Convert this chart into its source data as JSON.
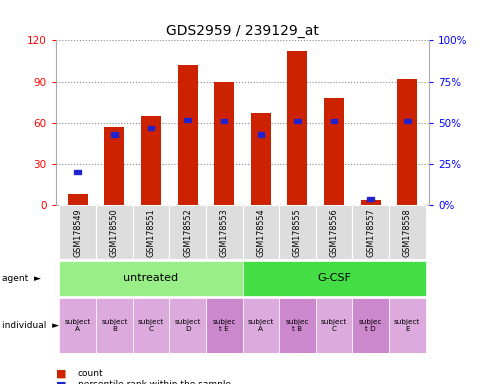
{
  "title": "GDS2959 / 239129_at",
  "samples": [
    "GSM178549",
    "GSM178550",
    "GSM178551",
    "GSM178552",
    "GSM178553",
    "GSM178554",
    "GSM178555",
    "GSM178556",
    "GSM178557",
    "GSM178558"
  ],
  "counts": [
    8,
    57,
    65,
    102,
    90,
    67,
    112,
    78,
    4,
    92
  ],
  "percentiles": [
    20,
    43,
    47,
    52,
    51,
    43,
    51,
    51,
    4,
    51
  ],
  "ylim_left": [
    0,
    120
  ],
  "yticks_left": [
    0,
    30,
    60,
    90,
    120
  ],
  "ytick_labels_left": [
    "0",
    "30",
    "60",
    "90",
    "120"
  ],
  "yticks_right_pct": [
    0,
    25,
    50,
    75,
    100
  ],
  "ytick_labels_right": [
    "0%",
    "25%",
    "50%",
    "75%",
    "100%"
  ],
  "bar_color": "#cc2200",
  "percentile_color": "#2222cc",
  "groups": [
    {
      "label": "untreated",
      "start": 0,
      "end": 5,
      "color": "#99ee88"
    },
    {
      "label": "G-CSF",
      "start": 5,
      "end": 10,
      "color": "#44dd44"
    }
  ],
  "individuals": [
    "subject\nA",
    "subject\nB",
    "subject\nC",
    "subject\nD",
    "subjec\nt E",
    "subject\nA",
    "subjec\nt B",
    "subject\nC",
    "subjec\nt D",
    "subject\nE"
  ],
  "indiv_colors": [
    "#ddaadd",
    "#ddaadd",
    "#ddaadd",
    "#ddaadd",
    "#cc88cc",
    "#ddaadd",
    "#cc88cc",
    "#ddaadd",
    "#cc88cc",
    "#ddaadd"
  ],
  "sample_bg": "#dddddd",
  "title_fontsize": 10,
  "bar_width": 0.55
}
